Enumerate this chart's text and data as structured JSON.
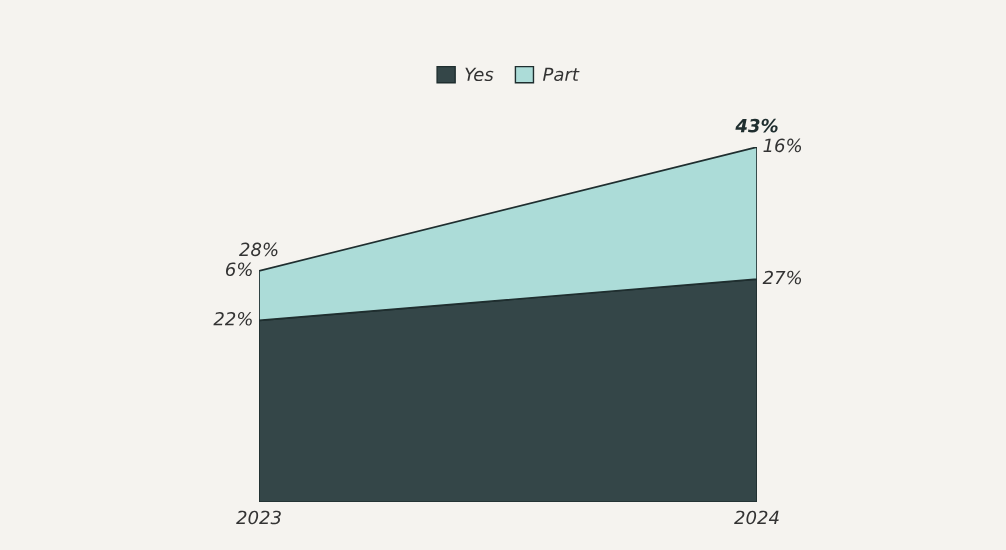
{
  "chart_data": {
    "type": "area",
    "stacked": true,
    "categories": [
      "2023",
      "2024"
    ],
    "series": [
      {
        "name": "Yes",
        "color": "#344648",
        "values": [
          22,
          27
        ],
        "value_labels": [
          "22%",
          "27%"
        ]
      },
      {
        "name": "Part",
        "color": "#acdcd8",
        "values": [
          6,
          16
        ],
        "value_labels": [
          "6%",
          "16%"
        ]
      }
    ],
    "totals": [
      "28%",
      "43%"
    ],
    "legend": "top"
  }
}
